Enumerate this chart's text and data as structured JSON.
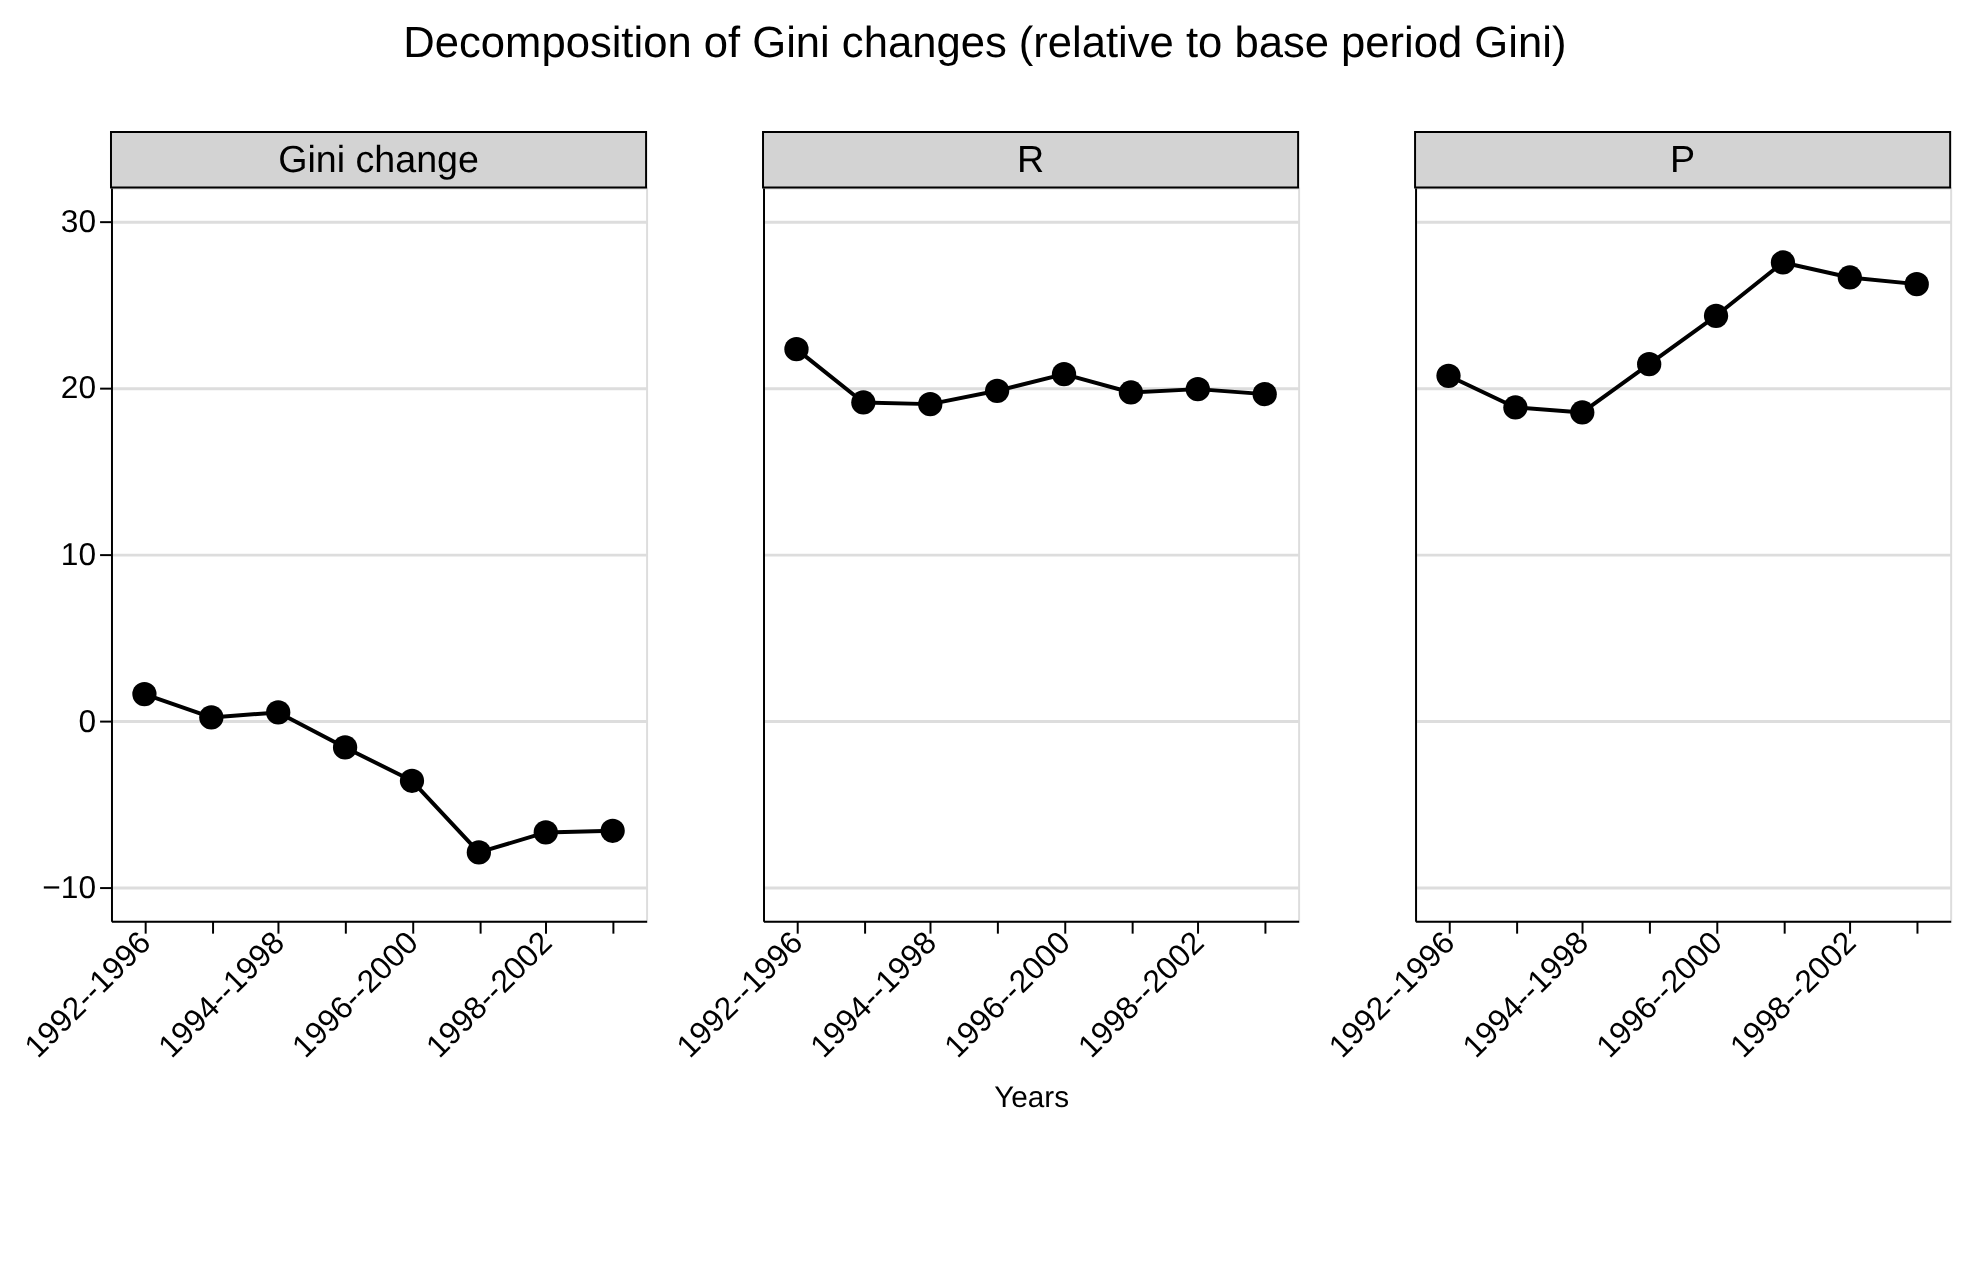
{
  "chart_data": [
    {
      "type": "line",
      "title": "Gini change",
      "annotations": [
        "Decomposition of Gini changes (relative to base period Gini)"
      ],
      "categories": [
        "1992--1996",
        null,
        "1994--1998",
        null,
        "1996--2000",
        null,
        "1998--2002",
        null
      ],
      "series": [
        {
          "color": "#000000",
          "values": [
            1.6,
            0.2,
            0.5,
            -1.6,
            -3.6,
            -7.9,
            -6.7,
            -6.6
          ]
        }
      ],
      "ylim": [
        -12,
        32
      ],
      "yticks": [
        -10,
        0,
        10,
        20,
        30
      ],
      "grid": "y",
      "marker": "circle",
      "line_style": "solid"
    },
    {
      "type": "line",
      "title": "R",
      "xlabel": "Years",
      "categories": [
        "1992--1996",
        null,
        "1994--1998",
        null,
        "1996--2000",
        null,
        "1998--2002",
        null
      ],
      "series": [
        {
          "color": "#000000",
          "values": [
            22.3,
            19.1,
            19.0,
            19.8,
            20.8,
            19.7,
            19.9,
            19.6
          ]
        }
      ],
      "ylim": [
        -12,
        32
      ],
      "yticks": [
        -10,
        0,
        10,
        20,
        30
      ],
      "grid": "y",
      "marker": "circle",
      "line_style": "solid",
      "tick_labels": "x"
    },
    {
      "type": "line",
      "title": "P",
      "categories": [
        "1992--1996",
        null,
        "1994--1998",
        null,
        "1996--2000",
        null,
        "1998--2002",
        null
      ],
      "series": [
        {
          "color": "#000000",
          "values": [
            20.7,
            18.8,
            18.5,
            21.4,
            24.3,
            27.5,
            26.6,
            26.2
          ]
        }
      ],
      "ylim": [
        -12,
        32
      ],
      "yticks": [
        -10,
        0,
        10,
        20,
        30
      ],
      "grid": "y",
      "marker": "circle",
      "line_style": "solid",
      "tick_labels": "x"
    }
  ]
}
